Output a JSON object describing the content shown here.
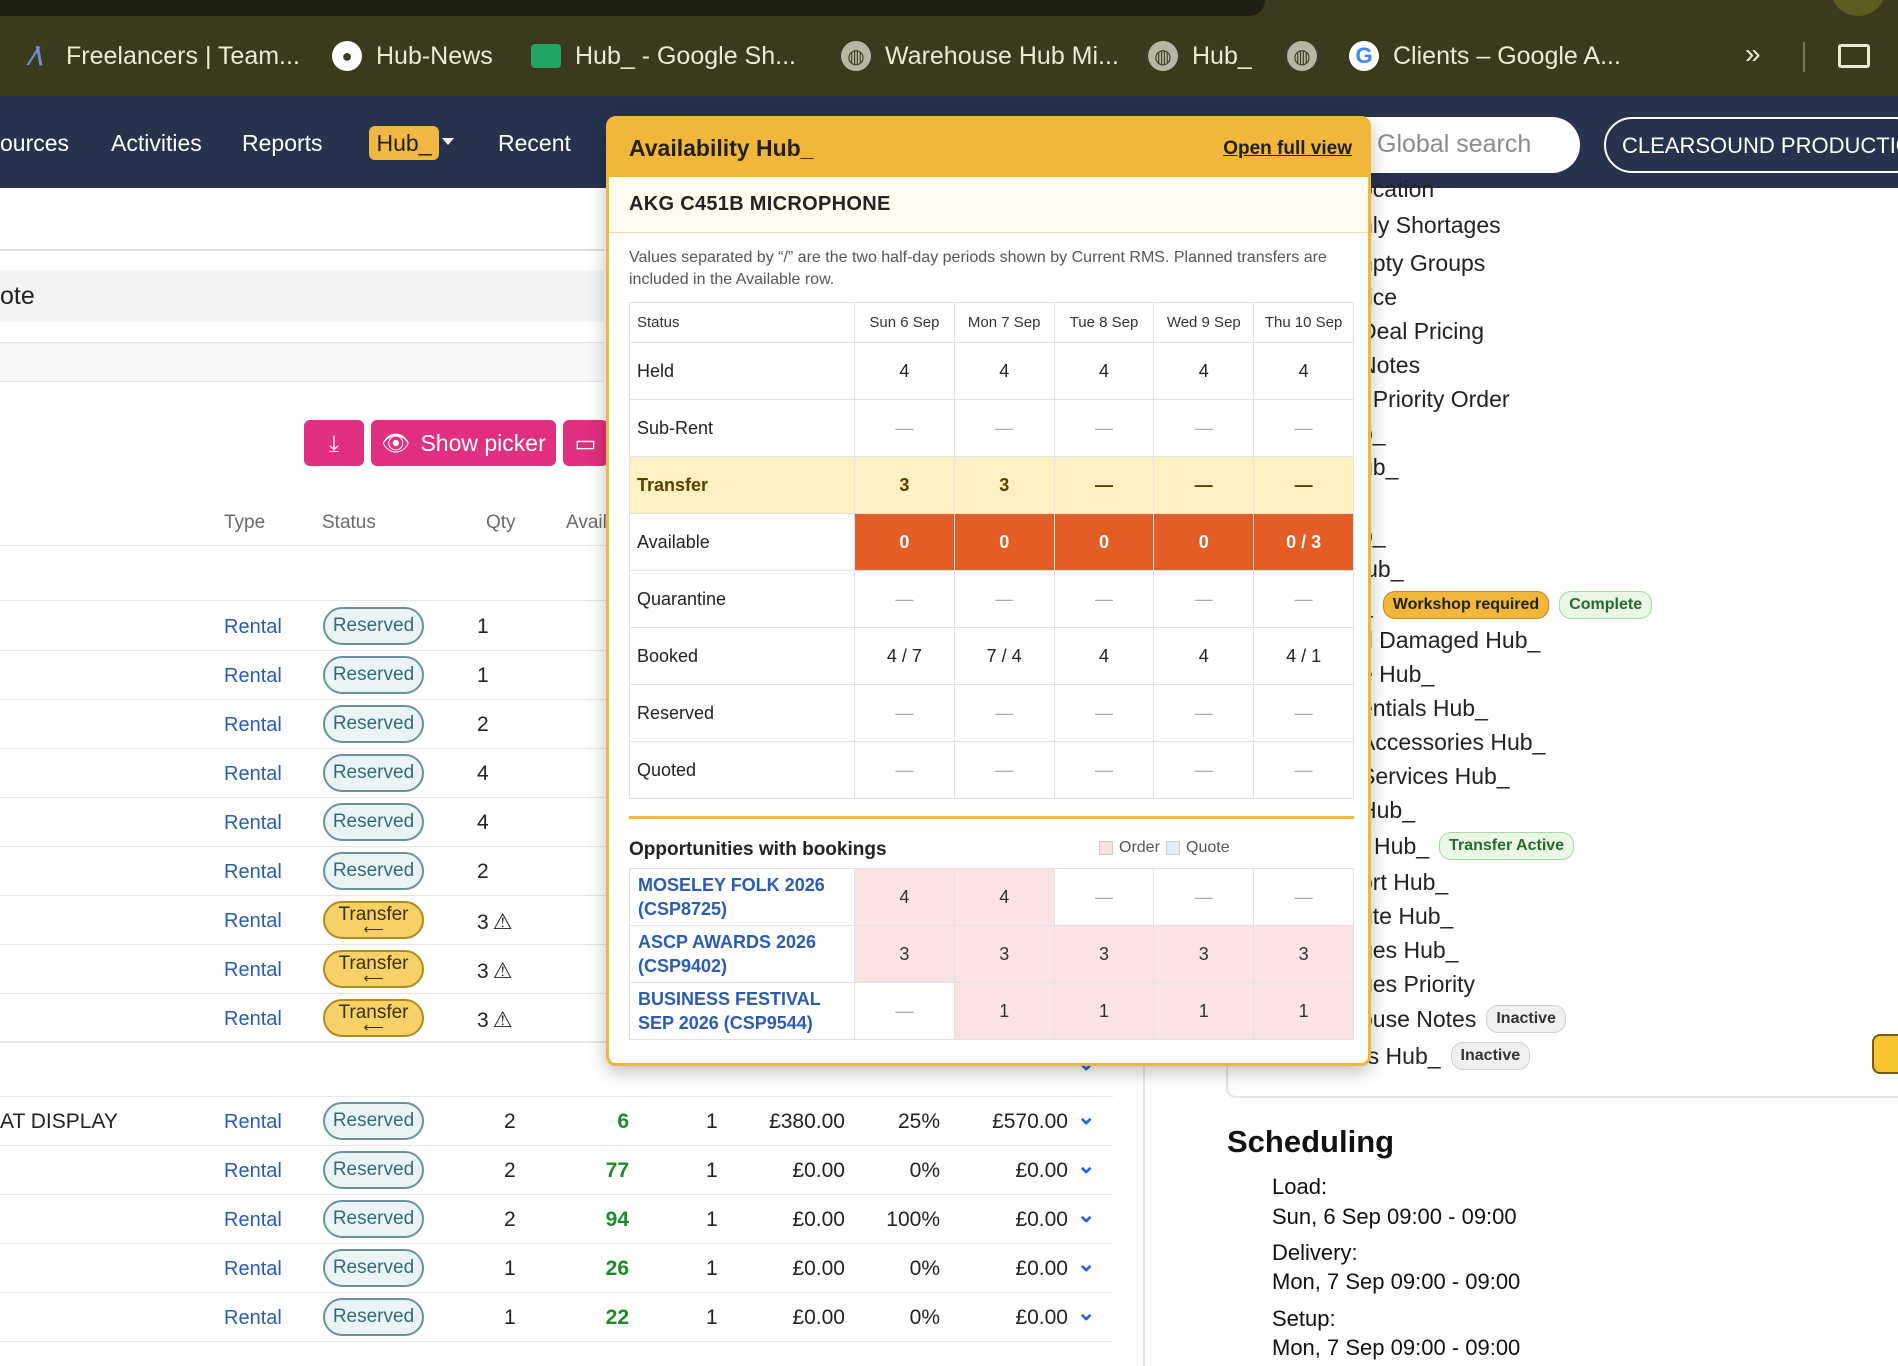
{
  "bookmarks": [
    {
      "label": "Freelancers | Team...",
      "icon": "freelancers-icon"
    },
    {
      "label": "Hub-News",
      "icon": "github-icon"
    },
    {
      "label": "Hub_ - Google Sh...",
      "icon": "google-sheets-icon"
    },
    {
      "label": "Warehouse Hub Mi...",
      "icon": "globe-icon"
    },
    {
      "label": "Hub_",
      "icon": "globe-icon"
    },
    {
      "label": "",
      "icon": "globe-icon"
    },
    {
      "label": "Clients – Google A...",
      "icon": "google-icon"
    }
  ],
  "bookmarks_more": "»",
  "nav": {
    "items": [
      "ources",
      "Activities",
      "Reports",
      "Recent"
    ],
    "hub_label": "Hub_",
    "search_placeholder": "Global search",
    "company": "CLEARSOUND PRODUCTION"
  },
  "left": {
    "quote_label": "ote",
    "show_picker": "Show picker",
    "col_headers": {
      "type": "Type",
      "status": "Status",
      "qty": "Qty",
      "avail": "Avail"
    },
    "rows_top": [
      {
        "type": "Rental",
        "status": "Reserved",
        "qty": "1"
      },
      {
        "type": "Rental",
        "status": "Reserved",
        "qty": "1"
      },
      {
        "type": "Rental",
        "status": "Reserved",
        "qty": "2"
      },
      {
        "type": "Rental",
        "status": "Reserved",
        "qty": "4"
      },
      {
        "type": "Rental",
        "status": "Reserved",
        "qty": "4"
      },
      {
        "type": "Rental",
        "status": "Reserved",
        "qty": "2"
      },
      {
        "type": "Rental",
        "status": "Transfer",
        "qty": "3"
      },
      {
        "type": "Rental",
        "status": "Transfer",
        "qty": "3"
      },
      {
        "type": "Rental",
        "status": "Transfer",
        "qty": "3"
      }
    ],
    "rows_bottom": [
      {
        "name": "AT DISPLAY",
        "type": "Rental",
        "status": "Reserved",
        "qty": "2",
        "avail": "6",
        "days": "1",
        "price": "£380.00",
        "disc": "25%",
        "total": "£570.00"
      },
      {
        "name": "",
        "type": "Rental",
        "status": "Reserved",
        "qty": "2",
        "avail": "77",
        "days": "1",
        "price": "£0.00",
        "disc": "0%",
        "total": "£0.00"
      },
      {
        "name": "",
        "type": "Rental",
        "status": "Reserved",
        "qty": "2",
        "avail": "94",
        "days": "1",
        "price": "£0.00",
        "disc": "100%",
        "total": "£0.00"
      },
      {
        "name": "",
        "type": "Rental",
        "status": "Reserved",
        "qty": "1",
        "avail": "26",
        "days": "1",
        "price": "£0.00",
        "disc": "0%",
        "total": "£0.00"
      },
      {
        "name": "",
        "type": "Rental",
        "status": "Reserved",
        "qty": "1",
        "avail": "22",
        "days": "1",
        "price": "£0.00",
        "disc": "0%",
        "total": "£0.00"
      }
    ]
  },
  "popup": {
    "title": "Availability Hub_",
    "open_full": "Open full view",
    "product": "AKG C451B MICROPHONE",
    "note": "Values separated by “/” are the two half-day periods shown by Current RMS. Planned transfers are included in the Available row.",
    "status_header": "Status",
    "days": [
      "Sun 6 Sep",
      "Mon 7 Sep",
      "Tue 8 Sep",
      "Wed 9 Sep",
      "Thu 10 Sep"
    ],
    "rows": [
      {
        "label": "Held",
        "values": [
          "4",
          "4",
          "4",
          "4",
          "4"
        ],
        "kind": "normal"
      },
      {
        "label": "Sub-Rent",
        "values": [
          "—",
          "—",
          "—",
          "—",
          "—"
        ],
        "kind": "normal"
      },
      {
        "label": "Transfer",
        "values": [
          "3",
          "3",
          "—",
          "—",
          "—"
        ],
        "kind": "transfer"
      },
      {
        "label": "Available",
        "values": [
          "0",
          "0",
          "0",
          "0",
          "0 / 3"
        ],
        "kind": "available"
      },
      {
        "label": "Quarantine",
        "values": [
          "—",
          "—",
          "—",
          "—",
          "—"
        ],
        "kind": "normal"
      },
      {
        "label": "Booked",
        "values": [
          "4 / 7",
          "7 / 4",
          "4",
          "4",
          "4 / 1"
        ],
        "kind": "normal"
      },
      {
        "label": "Reserved",
        "values": [
          "—",
          "—",
          "—",
          "—",
          "—"
        ],
        "kind": "normal"
      },
      {
        "label": "Quoted",
        "values": [
          "—",
          "—",
          "—",
          "—",
          "—"
        ],
        "kind": "normal"
      }
    ],
    "opps_title": "Opportunities with bookings",
    "legend_order": "Order",
    "legend_quote": "Quote",
    "legend_order_color": "#fbe3e3",
    "legend_quote_color": "#e3eefb",
    "opps": [
      {
        "name": "MOSELEY FOLK 2026 (CSP8725)",
        "values": [
          "4",
          "4",
          "—",
          "—",
          "—"
        ]
      },
      {
        "name": "ASCP AWARDS 2026 (CSP9402)",
        "values": [
          "3",
          "3",
          "3",
          "3",
          "3"
        ]
      },
      {
        "name": "BUSINESS FESTIVAL SEP 2026 (CSP9544)",
        "values": [
          "—",
          "1",
          "1",
          "1",
          "1"
        ]
      }
    ]
  },
  "right": {
    "items": [
      {
        "label": "ocation"
      },
      {
        "label": "nly Shortages"
      },
      {
        "label": "npty Groups"
      },
      {
        "label": "rice"
      },
      {
        "label": "Deal Pricing"
      },
      {
        "label": "Notes"
      },
      {
        "label": "t Priority Order"
      },
      {
        "label": "b_"
      },
      {
        "label": "ub_"
      },
      {
        "label": "b_"
      },
      {
        "label": "lub_"
      },
      {
        "label": "_",
        "badges": [
          "Workshop required",
          "Complete"
        ]
      },
      {
        "label": "d Damaged Hub_"
      },
      {
        "label": "e Hub_"
      },
      {
        "label": "entials Hub_"
      },
      {
        "label": "Accessories Hub_"
      },
      {
        "label": "Services Hub_"
      },
      {
        "label": "Hub_"
      },
      {
        "label": "r Hub_",
        "badges": [
          "Transfer Active"
        ]
      },
      {
        "label": "ort Hub_"
      },
      {
        "label": "ute Hub_"
      },
      {
        "label": "ges Hub_"
      },
      {
        "label": "ges Priority"
      },
      {
        "label": "ouse Notes",
        "badges": [
          "Inactive"
        ]
      },
      {
        "label": "rs Hub_",
        "badges": [
          "Inactive"
        ]
      }
    ],
    "scheduling_title": "Scheduling",
    "schedule": [
      {
        "label": "Load:",
        "value": "Sun, 6 Sep 09:00 - 09:00"
      },
      {
        "label": "Delivery:",
        "value": "Mon, 7 Sep 09:00 - 09:00"
      },
      {
        "label": "Setup:",
        "value": "Mon, 7 Sep 09:00 - 09:00"
      }
    ]
  }
}
